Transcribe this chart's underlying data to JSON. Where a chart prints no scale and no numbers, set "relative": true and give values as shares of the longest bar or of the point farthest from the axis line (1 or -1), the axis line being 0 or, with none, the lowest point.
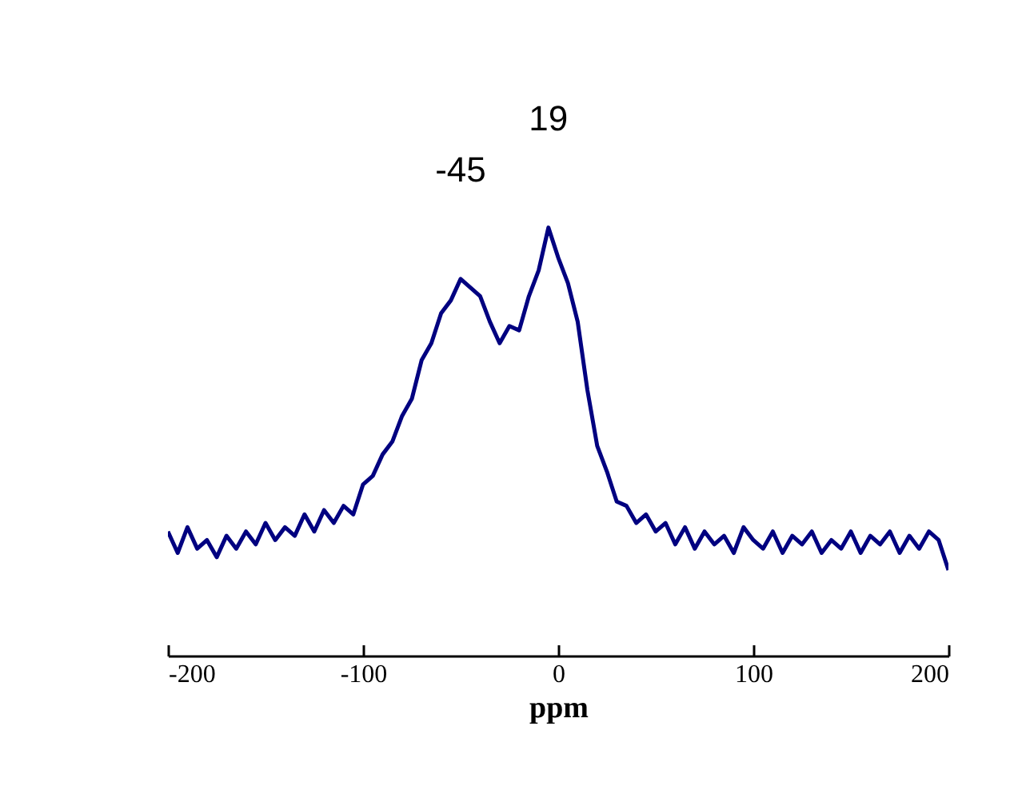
{
  "chart_data": {
    "type": "line",
    "xlabel": "ppm",
    "relative": true,
    "xlim": [
      -200,
      200
    ],
    "xticks": [
      -200,
      -100,
      0,
      100,
      200
    ],
    "grid": false,
    "x": [
      -200,
      -195,
      -190,
      -185,
      -180,
      -175,
      -170,
      -165,
      -160,
      -155,
      -150,
      -145,
      -140,
      -135,
      -130,
      -125,
      -120,
      -115,
      -110,
      -105,
      -100,
      -95,
      -90,
      -85,
      -80,
      -75,
      -70,
      -65,
      -60,
      -55,
      -50,
      -45,
      -40,
      -35,
      -30,
      -25,
      -20,
      -15,
      -10,
      -5,
      0,
      5,
      10,
      15,
      20,
      25,
      30,
      35,
      40,
      45,
      50,
      55,
      60,
      65,
      70,
      75,
      80,
      85,
      90,
      95,
      100,
      105,
      110,
      115,
      120,
      125,
      130,
      135,
      140,
      145,
      150,
      155,
      160,
      165,
      170,
      175,
      180,
      185,
      190,
      195,
      200
    ],
    "series": [
      {
        "color": "#000080",
        "values": [
          0.29,
          0.24,
          0.3,
          0.25,
          0.27,
          0.23,
          0.28,
          0.25,
          0.29,
          0.26,
          0.31,
          0.27,
          0.3,
          0.28,
          0.33,
          0.29,
          0.34,
          0.31,
          0.35,
          0.33,
          0.4,
          0.42,
          0.47,
          0.5,
          0.56,
          0.6,
          0.69,
          0.73,
          0.8,
          0.83,
          0.88,
          0.86,
          0.84,
          0.78,
          0.73,
          0.77,
          0.76,
          0.84,
          0.9,
          1.0,
          0.93,
          0.87,
          0.78,
          0.62,
          0.49,
          0.43,
          0.36,
          0.35,
          0.31,
          0.33,
          0.29,
          0.31,
          0.26,
          0.3,
          0.25,
          0.29,
          0.26,
          0.28,
          0.24,
          0.3,
          0.27,
          0.25,
          0.29,
          0.24,
          0.28,
          0.26,
          0.29,
          0.24,
          0.27,
          0.25,
          0.29,
          0.24,
          0.28,
          0.26,
          0.29,
          0.24,
          0.28,
          0.25,
          0.29,
          0.27,
          0.2
        ]
      }
    ],
    "annotations": [
      {
        "text": "-45",
        "x": -50,
        "y": 0.88
      },
      {
        "text": "19",
        "x": -5,
        "y": 1.0
      }
    ]
  }
}
